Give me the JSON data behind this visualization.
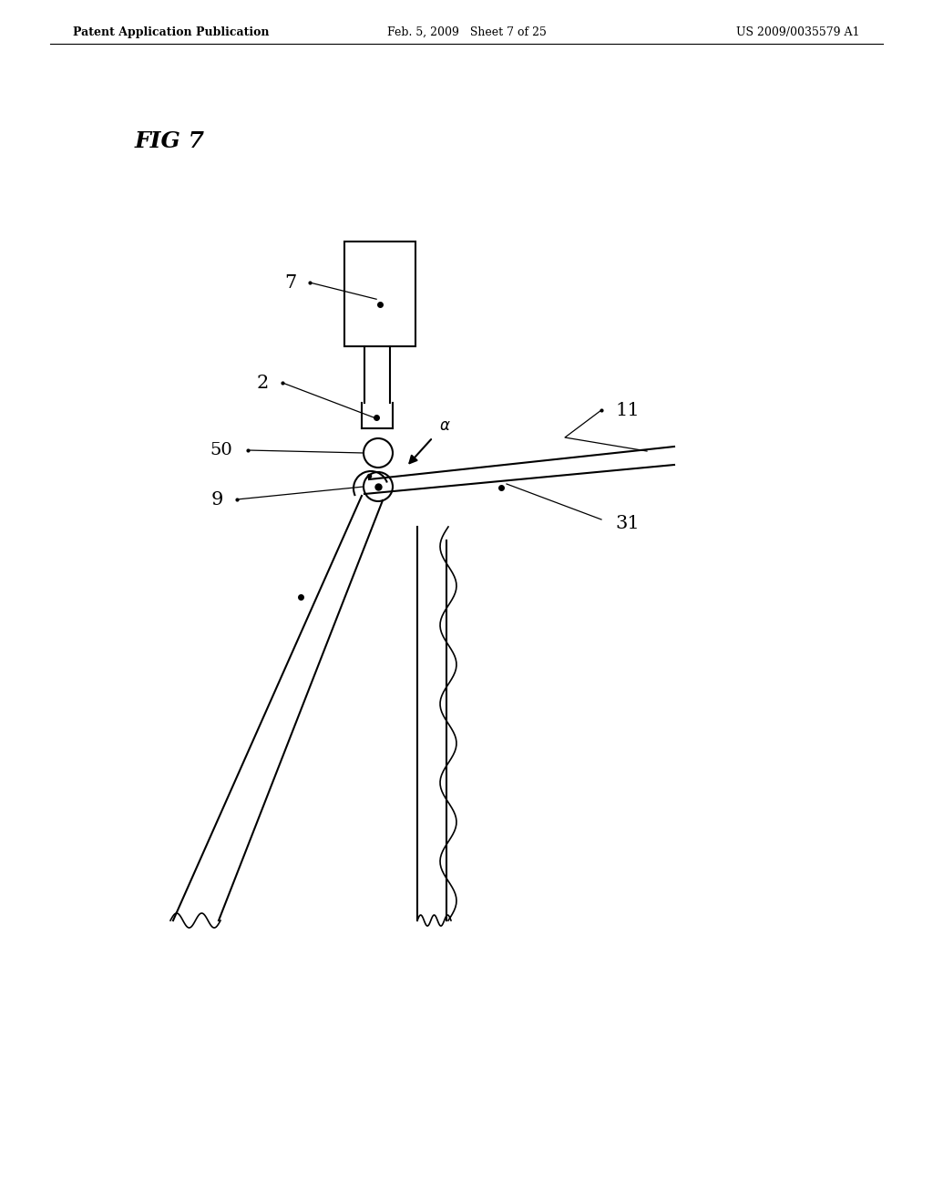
{
  "bg_color": "#ffffff",
  "header_left": "Patent Application Publication",
  "header_mid": "Feb. 5, 2009   Sheet 7 of 25",
  "header_right": "US 2009/0035579 A1",
  "fig_label": "FIG 7",
  "line_color": "#000000",
  "lw": 1.5
}
